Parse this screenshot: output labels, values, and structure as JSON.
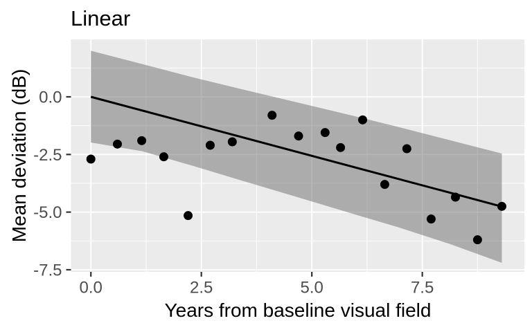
{
  "chart_data": {
    "type": "scatter",
    "title": "Linear",
    "xlabel": "Years from baseline visual field",
    "ylabel": "Mean deviation (dB)",
    "xlim": [
      -0.45,
      9.81
    ],
    "ylim": [
      -7.59,
      2.49
    ],
    "x_ticks": [
      0.0,
      2.5,
      5.0,
      7.5
    ],
    "x_tick_labels": [
      "0.0",
      "2.5",
      "5.0",
      "7.5"
    ],
    "x_minor_ticks": [
      1.25,
      3.75,
      6.25,
      8.75
    ],
    "y_ticks": [
      0.0,
      -2.5,
      -5.0,
      -7.5
    ],
    "y_tick_labels": [
      "0.0",
      "-2.5",
      "-5.0",
      "-7.5"
    ],
    "y_minor_ticks": [
      1.25,
      -1.25,
      -3.75,
      -6.25
    ],
    "grid": true,
    "legend": false,
    "points": [
      [
        0.0,
        -2.7
      ],
      [
        0.6,
        -2.05
      ],
      [
        1.15,
        -1.9
      ],
      [
        1.65,
        -2.6
      ],
      [
        2.2,
        -5.15
      ],
      [
        2.7,
        -2.1
      ],
      [
        3.2,
        -1.95
      ],
      [
        4.1,
        -0.8
      ],
      [
        4.7,
        -1.7
      ],
      [
        5.3,
        -1.55
      ],
      [
        5.65,
        -2.2
      ],
      [
        6.15,
        -1.0
      ],
      [
        6.65,
        -3.8
      ],
      [
        7.15,
        -2.25
      ],
      [
        7.7,
        -5.3
      ],
      [
        8.25,
        -4.35
      ],
      [
        8.75,
        -6.2
      ],
      [
        9.3,
        -4.75
      ]
    ],
    "regression_line": {
      "x": [
        0.0,
        9.3
      ],
      "y": [
        0.0,
        -4.76
      ]
    },
    "ribbon": {
      "x": [
        0.0,
        1.16,
        2.32,
        3.48,
        4.64,
        5.8,
        6.96,
        8.12,
        9.3
      ],
      "upper": [
        2.0,
        1.42,
        0.84,
        0.3,
        -0.23,
        -0.76,
        -1.31,
        -1.88,
        -2.46
      ],
      "lower": [
        -1.98,
        -2.36,
        -3.0,
        -3.67,
        -4.33,
        -5.0,
        -5.66,
        -6.38,
        -7.2
      ]
    },
    "colors": {
      "panel_bg": "#ebebeb",
      "grid": "#ffffff",
      "ribbon": "rgba(110,110,110,0.5)",
      "line": "#000000",
      "point": "#000000",
      "tick_mark": "#333333",
      "tick_label": "#4d4d4d",
      "axis_title": "#000000"
    }
  }
}
